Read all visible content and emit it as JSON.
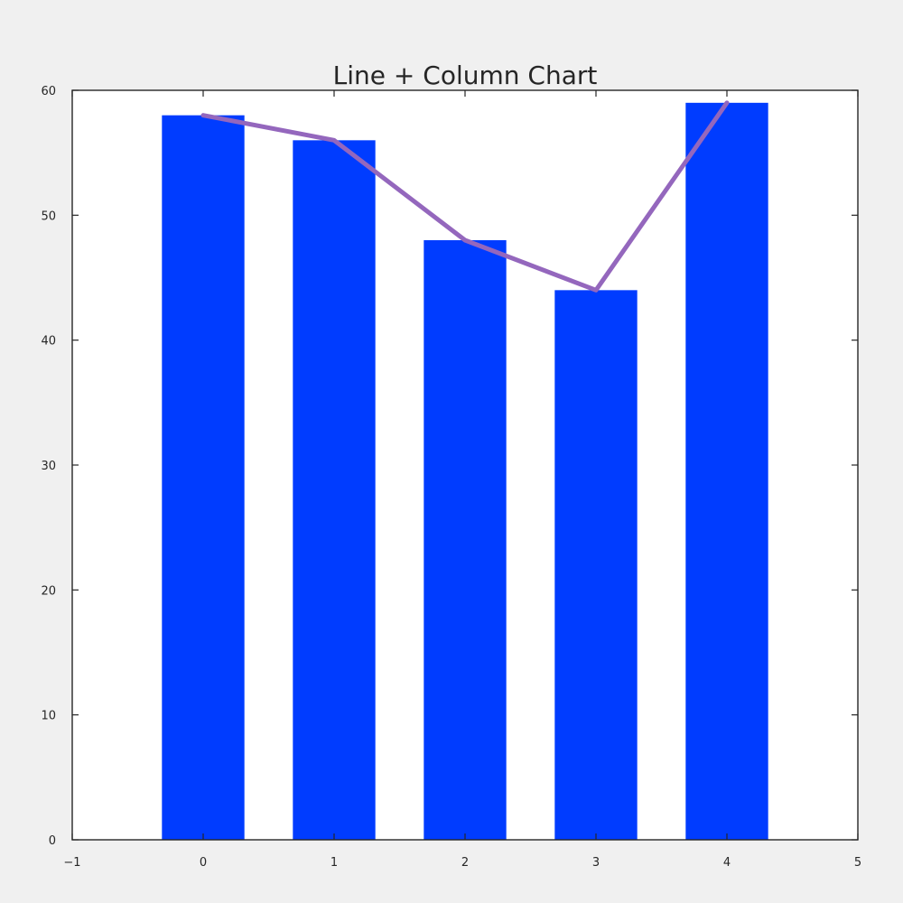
{
  "chart_data": {
    "type": "bar",
    "title": "Line + Column Chart",
    "xlabel": "",
    "ylabel": "",
    "categories": [
      0,
      1,
      2,
      3,
      4
    ],
    "series": [
      {
        "kind": "bar",
        "values": [
          58,
          56,
          48,
          44,
          59
        ],
        "color": "#003cff"
      },
      {
        "kind": "line",
        "values": [
          58,
          56,
          48,
          44,
          59
        ],
        "color": "#9467bd"
      }
    ],
    "xlim": [
      -1,
      5
    ],
    "ylim": [
      0,
      60
    ],
    "xticks": [
      "−1",
      "0",
      "1",
      "2",
      "3",
      "4",
      "5"
    ],
    "yticks": [
      "0",
      "10",
      "20",
      "30",
      "40",
      "50",
      "60"
    ],
    "grid": false,
    "legend": "none"
  },
  "colors": {
    "figure_background": "#f0f0f0",
    "plot_background": "#ffffff",
    "axis": "#262626"
  }
}
